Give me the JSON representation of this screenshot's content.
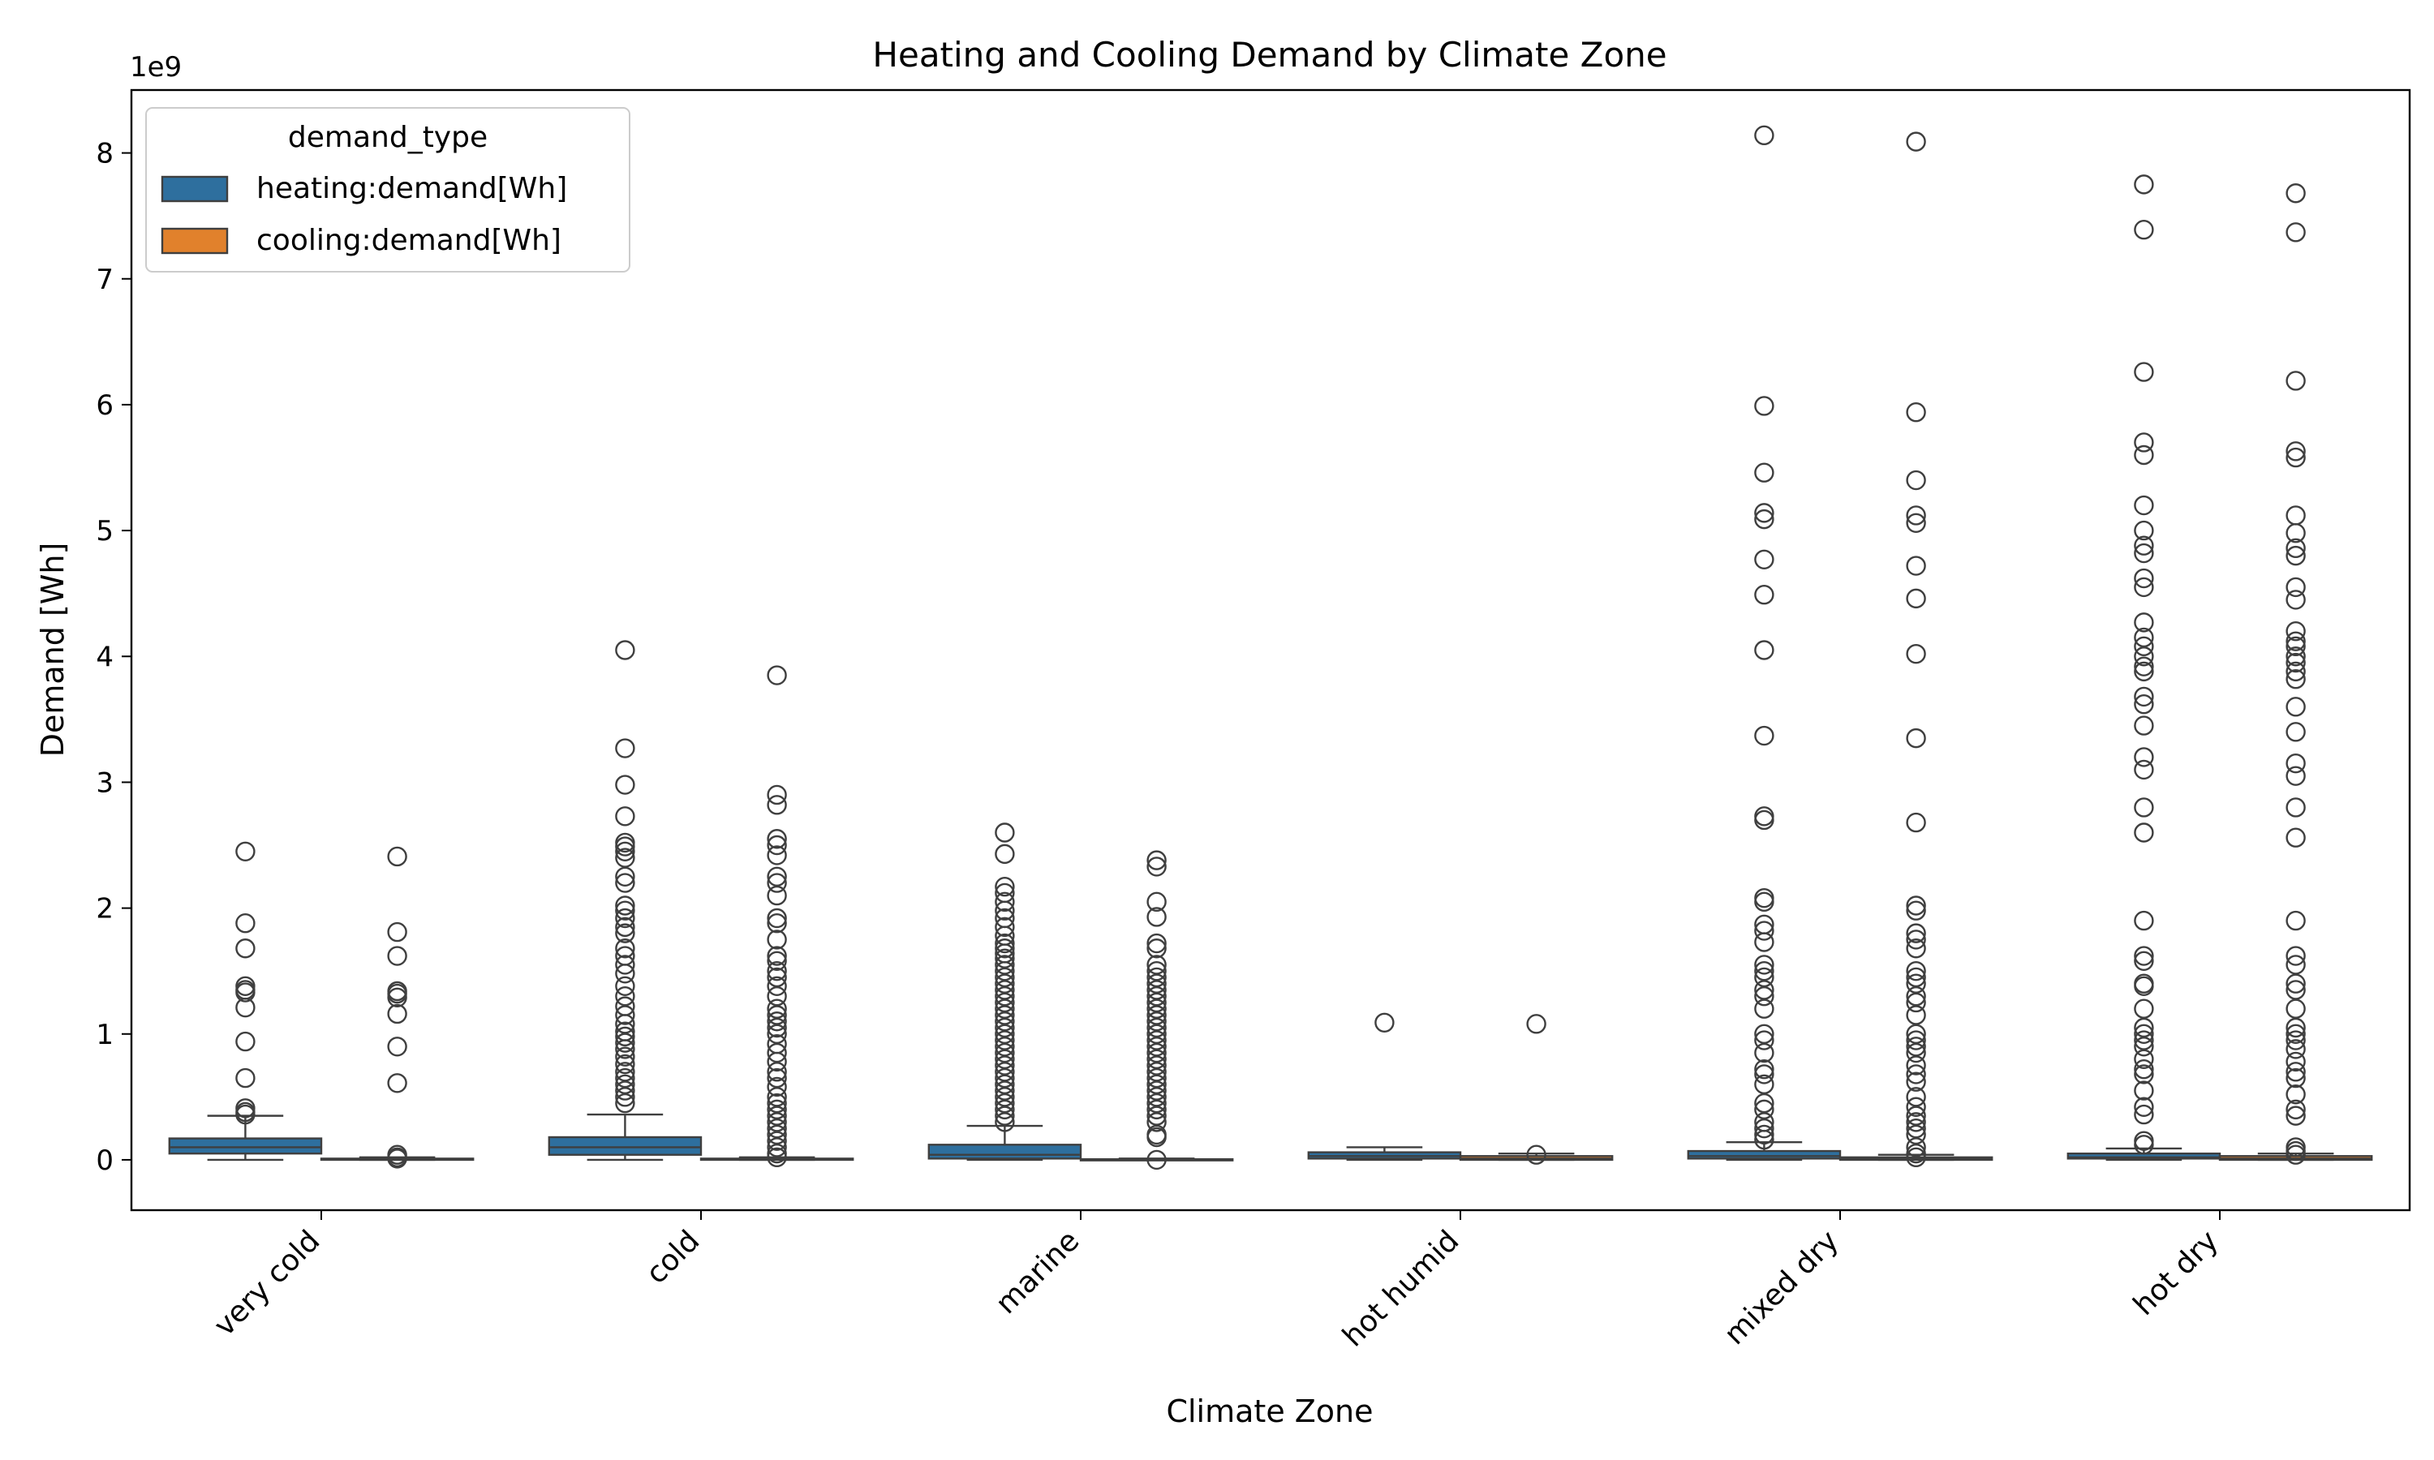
{
  "chart_data": {
    "type": "boxplot",
    "title": "Heating and Cooling Demand by Climate Zone",
    "xlabel": "Climate Zone",
    "ylabel": "Demand [Wh]",
    "y_exponent_label": "1e9",
    "y_scale": 1000000000,
    "ylim": [
      -0.4,
      8.5
    ],
    "yticks": [
      0,
      1,
      2,
      3,
      4,
      5,
      6,
      7,
      8
    ],
    "categories": [
      "very cold",
      "cold",
      "marine",
      "hot humid",
      "mixed dry",
      "hot dry"
    ],
    "legend": {
      "title": "demand_type",
      "position": "top-left",
      "entries": [
        {
          "label": "heating:demand[Wh]",
          "color": "#2e6f9e"
        },
        {
          "label": "cooling:demand[Wh]",
          "color": "#e1812c"
        }
      ]
    },
    "series": [
      {
        "name": "heating:demand[Wh]",
        "color": "#2e6f9e",
        "boxes": [
          {
            "q1": 0.05,
            "median": 0.1,
            "q3": 0.17,
            "whisker_low": 0.0,
            "whisker_high": 0.35,
            "outliers": [
              2.45,
              1.88,
              1.68,
              1.38,
              1.35,
              1.33,
              1.21,
              0.94,
              0.65,
              0.41,
              0.38,
              0.36
            ]
          },
          {
            "q1": 0.04,
            "median": 0.1,
            "q3": 0.18,
            "whisker_low": 0.0,
            "whisker_high": 0.36,
            "outliers": [
              4.05,
              3.27,
              2.98,
              2.73,
              2.52,
              2.49,
              2.45,
              2.4,
              2.25,
              2.2,
              2.02,
              1.98,
              1.92,
              1.85,
              1.8,
              1.68,
              1.62,
              1.55,
              1.48,
              1.38,
              1.3,
              1.22,
              1.15,
              1.08,
              1.02,
              0.98,
              0.93,
              0.88,
              0.82,
              0.76,
              0.7,
              0.65,
              0.6,
              0.55,
              0.5,
              0.45
            ]
          },
          {
            "q1": 0.01,
            "median": 0.04,
            "q3": 0.12,
            "whisker_low": 0.0,
            "whisker_high": 0.27,
            "outliers": [
              2.6,
              2.43,
              2.17,
              2.12,
              2.05,
              1.98,
              1.92,
              1.85,
              1.78,
              1.72,
              1.68,
              1.64,
              1.6,
              1.55,
              1.5,
              1.45,
              1.4,
              1.35,
              1.3,
              1.25,
              1.2,
              1.15,
              1.1,
              1.05,
              1.0,
              0.95,
              0.9,
              0.85,
              0.8,
              0.75,
              0.7,
              0.65,
              0.6,
              0.55,
              0.5,
              0.45,
              0.4,
              0.35,
              0.3
            ]
          },
          {
            "q1": 0.01,
            "median": 0.03,
            "q3": 0.06,
            "whisker_low": 0.0,
            "whisker_high": 0.1,
            "outliers": [
              1.09
            ]
          },
          {
            "q1": 0.01,
            "median": 0.03,
            "q3": 0.07,
            "whisker_low": 0.0,
            "whisker_high": 0.14,
            "outliers": [
              8.14,
              5.99,
              5.46,
              5.14,
              5.09,
              4.77,
              4.49,
              4.05,
              3.37,
              2.73,
              2.7,
              2.08,
              2.05,
              1.87,
              1.82,
              1.73,
              1.55,
              1.5,
              1.45,
              1.35,
              1.3,
              1.2,
              1.0,
              0.95,
              0.85,
              0.72,
              0.68,
              0.6,
              0.45,
              0.4,
              0.3,
              0.25,
              0.2,
              0.16
            ]
          },
          {
            "q1": 0.01,
            "median": 0.02,
            "q3": 0.05,
            "whisker_low": 0.0,
            "whisker_high": 0.09,
            "outliers": [
              7.75,
              7.39,
              6.26,
              5.7,
              5.6,
              5.2,
              5.0,
              4.88,
              4.82,
              4.62,
              4.55,
              4.27,
              4.15,
              4.08,
              4.0,
              3.92,
              3.88,
              3.68,
              3.62,
              3.45,
              3.2,
              3.1,
              2.8,
              2.6,
              1.9,
              1.62,
              1.58,
              1.4,
              1.38,
              1.2,
              1.05,
              1.0,
              0.95,
              0.9,
              0.8,
              0.72,
              0.68,
              0.55,
              0.42,
              0.36,
              0.15,
              0.12
            ]
          }
        ]
      },
      {
        "name": "cooling:demand[Wh]",
        "color": "#e1812c",
        "boxes": [
          {
            "q1": 0.0,
            "median": 0.005,
            "q3": 0.01,
            "whisker_low": 0.0,
            "whisker_high": 0.02,
            "outliers": [
              2.41,
              1.81,
              1.62,
              1.34,
              1.32,
              1.29,
              1.16,
              0.9,
              0.61,
              0.04,
              0.02,
              0.01
            ]
          },
          {
            "q1": 0.0,
            "median": 0.005,
            "q3": 0.01,
            "whisker_low": 0.0,
            "whisker_high": 0.02,
            "outliers": [
              3.85,
              2.9,
              2.82,
              2.55,
              2.5,
              2.42,
              2.25,
              2.2,
              2.1,
              1.92,
              1.88,
              1.75,
              1.62,
              1.58,
              1.5,
              1.45,
              1.38,
              1.3,
              1.2,
              1.15,
              1.1,
              1.05,
              1.0,
              0.92,
              0.85,
              0.78,
              0.7,
              0.65,
              0.58,
              0.5,
              0.45,
              0.4,
              0.35,
              0.3,
              0.25,
              0.2,
              0.15,
              0.1,
              0.05,
              0.02
            ]
          },
          {
            "q1": 0.0,
            "median": 0.002,
            "q3": 0.005,
            "whisker_low": 0.0,
            "whisker_high": 0.01,
            "outliers": [
              2.38,
              2.33,
              2.05,
              1.93,
              1.72,
              1.68,
              1.55,
              1.5,
              1.45,
              1.4,
              1.35,
              1.3,
              1.25,
              1.2,
              1.15,
              1.1,
              1.05,
              1.0,
              0.95,
              0.9,
              0.85,
              0.8,
              0.75,
              0.7,
              0.65,
              0.6,
              0.55,
              0.5,
              0.45,
              0.4,
              0.35,
              0.3,
              0.2,
              0.18,
              0.0
            ]
          },
          {
            "q1": 0.0,
            "median": 0.01,
            "q3": 0.03,
            "whisker_low": 0.0,
            "whisker_high": 0.05,
            "outliers": [
              1.08,
              0.04
            ]
          },
          {
            "q1": 0.0,
            "median": 0.005,
            "q3": 0.02,
            "whisker_low": 0.0,
            "whisker_high": 0.04,
            "outliers": [
              8.09,
              5.94,
              5.4,
              5.12,
              5.06,
              4.72,
              4.46,
              4.02,
              3.35,
              2.68,
              2.02,
              1.98,
              1.8,
              1.75,
              1.68,
              1.5,
              1.45,
              1.4,
              1.3,
              1.25,
              1.15,
              1.0,
              0.95,
              0.9,
              0.85,
              0.75,
              0.68,
              0.62,
              0.5,
              0.42,
              0.35,
              0.3,
              0.25,
              0.2,
              0.1,
              0.05,
              0.02
            ]
          },
          {
            "q1": 0.0,
            "median": 0.01,
            "q3": 0.03,
            "whisker_low": 0.0,
            "whisker_high": 0.05,
            "outliers": [
              7.68,
              7.37,
              6.19,
              5.63,
              5.58,
              5.12,
              4.98,
              4.86,
              4.8,
              4.55,
              4.45,
              4.2,
              4.12,
              4.08,
              4.0,
              3.95,
              3.88,
              3.82,
              3.6,
              3.4,
              3.15,
              3.05,
              2.8,
              2.56,
              1.9,
              1.62,
              1.55,
              1.4,
              1.35,
              1.2,
              1.05,
              1.0,
              0.95,
              0.88,
              0.78,
              0.7,
              0.65,
              0.52,
              0.4,
              0.35,
              0.1,
              0.07,
              0.04
            ]
          }
        ]
      }
    ]
  }
}
